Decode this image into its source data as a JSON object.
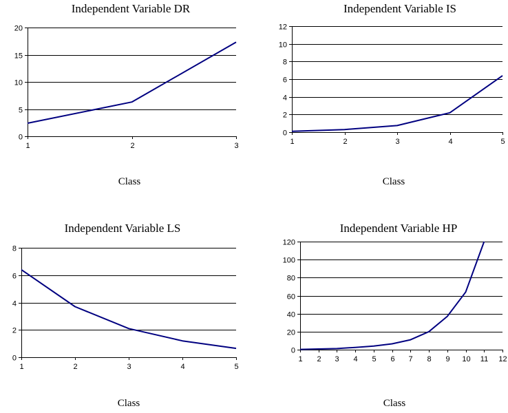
{
  "chart_data": [
    {
      "type": "line",
      "title": "Independent Variable DR",
      "xlabel": "Class",
      "ylabel": "",
      "x": [
        1,
        2,
        3
      ],
      "series": [
        {
          "values": [
            2.4,
            6.3,
            17.3
          ]
        }
      ],
      "ylim": [
        0,
        20
      ],
      "yticks": [
        0,
        5,
        10,
        15,
        20
      ],
      "xticks": [
        1,
        2,
        3
      ],
      "grid": true,
      "color": "#000080"
    },
    {
      "type": "line",
      "title": "Independent Variable IS",
      "xlabel": "Class",
      "ylabel": "",
      "x": [
        1,
        2,
        3,
        4,
        5
      ],
      "series": [
        {
          "values": [
            0.1,
            0.3,
            0.75,
            2.2,
            6.4
          ]
        }
      ],
      "ylim": [
        0,
        12
      ],
      "yticks": [
        0,
        2,
        4,
        6,
        8,
        10,
        12
      ],
      "xticks": [
        1,
        2,
        3,
        4,
        5
      ],
      "grid": true,
      "color": "#000080"
    },
    {
      "type": "line",
      "title": "Independent Variable LS",
      "xlabel": "Class",
      "ylabel": "",
      "x": [
        1,
        2,
        3,
        4,
        5
      ],
      "series": [
        {
          "values": [
            6.4,
            3.7,
            2.1,
            1.2,
            0.65
          ]
        }
      ],
      "ylim": [
        0,
        8
      ],
      "yticks": [
        0,
        2,
        4,
        6,
        8
      ],
      "xticks": [
        1,
        2,
        3,
        4,
        5
      ],
      "grid": true,
      "color": "#000080"
    },
    {
      "type": "line",
      "title": "Independent Variable HP",
      "xlabel": "Class",
      "ylabel": "",
      "x": [
        1,
        2,
        3,
        4,
        5,
        6,
        7,
        8,
        9,
        10,
        11
      ],
      "series": [
        {
          "values": [
            0.3,
            0.8,
            1.2,
            2.5,
            4,
            6.5,
            11,
            20,
            37,
            64,
            120
          ]
        }
      ],
      "ylim": [
        0,
        120
      ],
      "yticks": [
        0,
        20,
        40,
        60,
        80,
        100,
        120
      ],
      "xticks": [
        1,
        2,
        3,
        4,
        5,
        6,
        7,
        8,
        9,
        10,
        11,
        12
      ],
      "grid": true,
      "color": "#000080"
    }
  ]
}
